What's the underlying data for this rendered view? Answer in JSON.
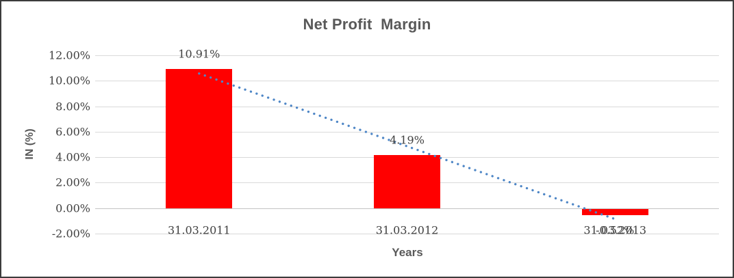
{
  "window": {
    "background": "#ffffff",
    "border_color": "#3c3c3c"
  },
  "chart_data": {
    "type": "bar",
    "title": "Net Profit  Margin",
    "xlabel": "Years",
    "ylabel": "IN (%)",
    "categories": [
      "31.03.2011",
      "31.03.2012",
      "31.03.2013"
    ],
    "values": [
      10.91,
      4.19,
      -0.52
    ],
    "data_labels": [
      "10.91%",
      "4.19%",
      "-0.52%"
    ],
    "yticks": [
      {
        "value": 12,
        "label": "12.00%"
      },
      {
        "value": 10,
        "label": "10.00%"
      },
      {
        "value": 8,
        "label": "8.00%"
      },
      {
        "value": 6,
        "label": "6.00%"
      },
      {
        "value": 4,
        "label": "4.00%"
      },
      {
        "value": 2,
        "label": "2.00%"
      },
      {
        "value": 0,
        "label": "0.00%"
      },
      {
        "value": -2,
        "label": "-2.00%"
      }
    ],
    "ylim": [
      -2,
      12
    ],
    "grid": true,
    "legend": false,
    "bar_color": "#ff0000",
    "trendline": {
      "type": "linear",
      "style": "dotted",
      "color": "#4e86c6"
    },
    "text_color": "#404040",
    "heading_color": "#595959",
    "gridline_color": "#d9d9d9"
  }
}
